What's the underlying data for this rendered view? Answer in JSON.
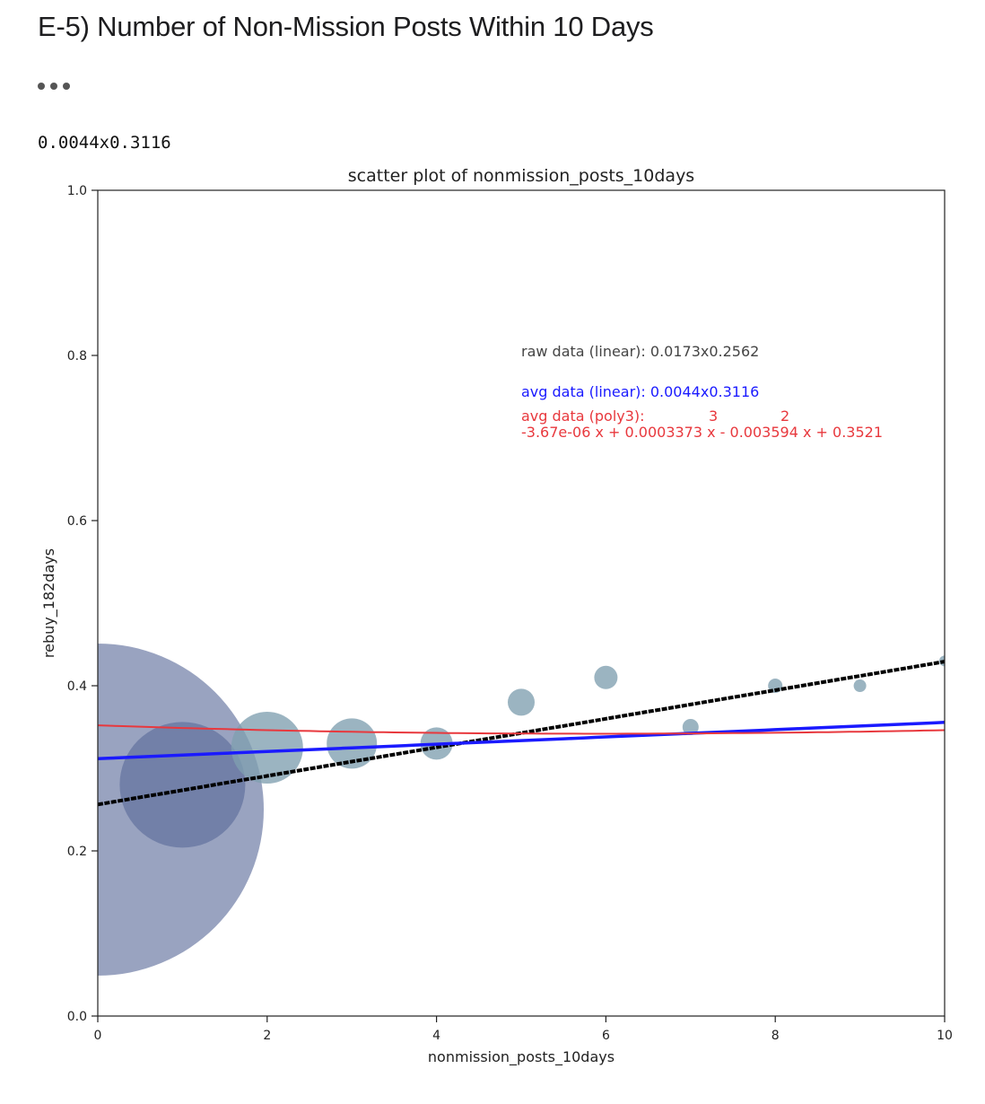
{
  "page": {
    "heading": "E-5) Number of Non-Mission Posts Within 10 Days",
    "output_text": "0.0044x0.3116"
  },
  "chart_data": {
    "type": "scatter",
    "title": "scatter plot of nonmission_posts_10days",
    "xlabel": "nonmission_posts_10days",
    "ylabel": "rebuy_182days",
    "xlim": [
      0,
      10
    ],
    "ylim": [
      0.0,
      1.0
    ],
    "xticks": [
      "0",
      "2",
      "4",
      "6",
      "8",
      "10"
    ],
    "yticks": [
      "0.0",
      "0.2",
      "0.4",
      "0.6",
      "0.8",
      "1.0"
    ],
    "grid": false,
    "series": [
      {
        "kind": "raw",
        "color": "#5a6b9a",
        "points": [
          {
            "x": 0,
            "y": 0.25,
            "size": 185
          },
          {
            "x": 1,
            "y": 0.28,
            "size": 70
          }
        ]
      },
      {
        "kind": "avg",
        "color": "#7f9fb0",
        "points": [
          {
            "x": 2,
            "y": 0.325,
            "size": 40
          },
          {
            "x": 3,
            "y": 0.33,
            "size": 28
          },
          {
            "x": 4,
            "y": 0.33,
            "size": 18
          },
          {
            "x": 5,
            "y": 0.38,
            "size": 15
          },
          {
            "x": 6,
            "y": 0.41,
            "size": 13
          },
          {
            "x": 7,
            "y": 0.35,
            "size": 9
          },
          {
            "x": 8,
            "y": 0.4,
            "size": 8
          },
          {
            "x": 9,
            "y": 0.4,
            "size": 7
          },
          {
            "x": 10,
            "y": 0.43,
            "size": 6
          }
        ]
      }
    ],
    "fits": [
      {
        "name": "raw data (linear)",
        "color": "#000000",
        "model": "linear",
        "slope": 0.0173,
        "intercept": 0.2562
      },
      {
        "name": "avg data (linear)",
        "color": "#1a1aff",
        "model": "linear",
        "slope": 0.0044,
        "intercept": 0.3116
      },
      {
        "name": "avg data (poly3)",
        "color": "#e8383d",
        "model": "poly3",
        "coefficients": [
          -3.67e-06,
          0.0003373,
          -0.003594,
          0.3521
        ]
      }
    ],
    "annotations": {
      "raw_linear": "raw data (linear): 0.0173x0.2562",
      "avg_linear": "avg data (linear): 0.0044x0.3116",
      "poly_label": "avg data (poly3):",
      "poly_exp3": "3",
      "poly_exp2": "2",
      "poly_formula": "-3.67e-06 x + 0.0003373 x - 0.003594 x + 0.3521"
    }
  }
}
